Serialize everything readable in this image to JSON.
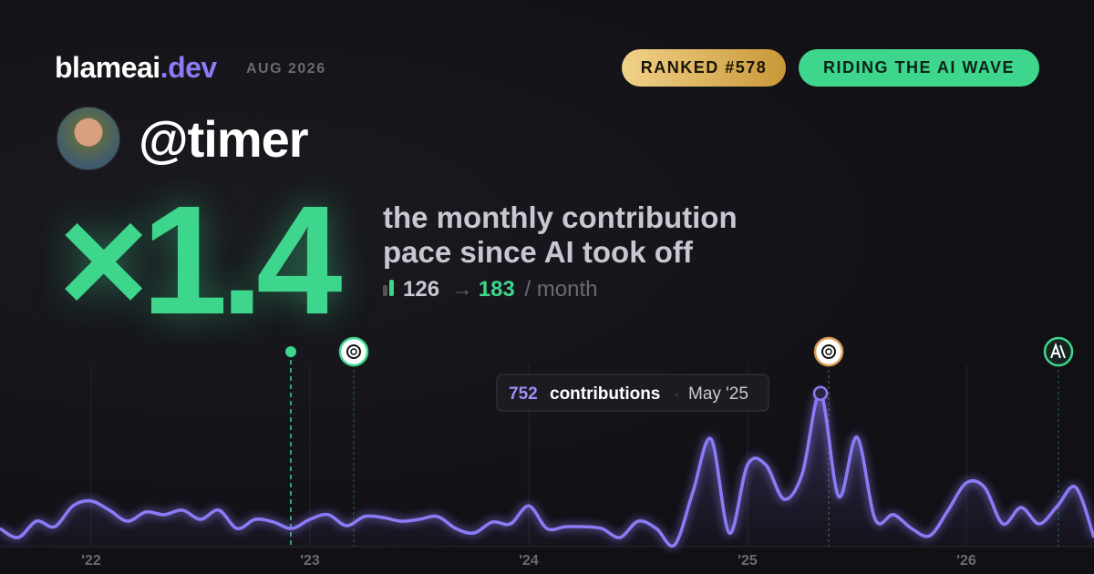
{
  "header": {
    "brand": "blameai",
    "brand_tld": ".dev",
    "period": "AUG 2026",
    "badges": [
      "RANKED #578",
      "RIDING THE AI WAVE"
    ],
    "handle": "@timer"
  },
  "headline": {
    "multiplier": "×1.4",
    "lines": [
      "the monthly contribution",
      "pace since AI took off"
    ],
    "before": 126,
    "arrow": "→",
    "after": 183,
    "unit": "/ month"
  },
  "chart_data": {
    "type": "line",
    "categories": [
      null,
      null,
      null,
      null,
      null,
      "'22",
      null,
      null,
      null,
      null,
      null,
      null,
      null,
      null,
      null,
      null,
      null,
      "'23",
      null,
      null,
      null,
      null,
      null,
      null,
      null,
      null,
      null,
      null,
      null,
      "'24",
      null,
      null,
      null,
      null,
      null,
      null,
      null,
      null,
      null,
      null,
      null,
      "'25",
      null,
      null,
      null,
      null,
      null,
      null,
      null,
      null,
      null,
      null,
      null,
      "'26",
      null,
      null,
      null,
      null,
      null,
      null,
      null
    ],
    "series": [
      {
        "name": "contributions",
        "color": "#8b7cf6",
        "values": [
          89,
          45,
          125,
          98,
          200,
          224,
          179,
          125,
          170,
          157,
          179,
          134,
          179,
          89,
          134,
          121,
          89,
          134,
          157,
          103,
          148,
          143,
          125,
          134,
          148,
          89,
          67,
          121,
          112,
          200,
          89,
          98,
          98,
          89,
          45,
          125,
          89,
          9,
          268,
          528,
          67,
          402,
          402,
          233,
          358,
          752,
          246,
          537,
          134,
          157,
          89,
          54,
          179,
          313,
          291,
          112,
          192,
          112,
          200,
          291,
          45
        ]
      }
    ],
    "ylim": [
      0,
      800
    ],
    "annotation": {
      "label": "contributions",
      "date": "May '25"
    }
  }
}
